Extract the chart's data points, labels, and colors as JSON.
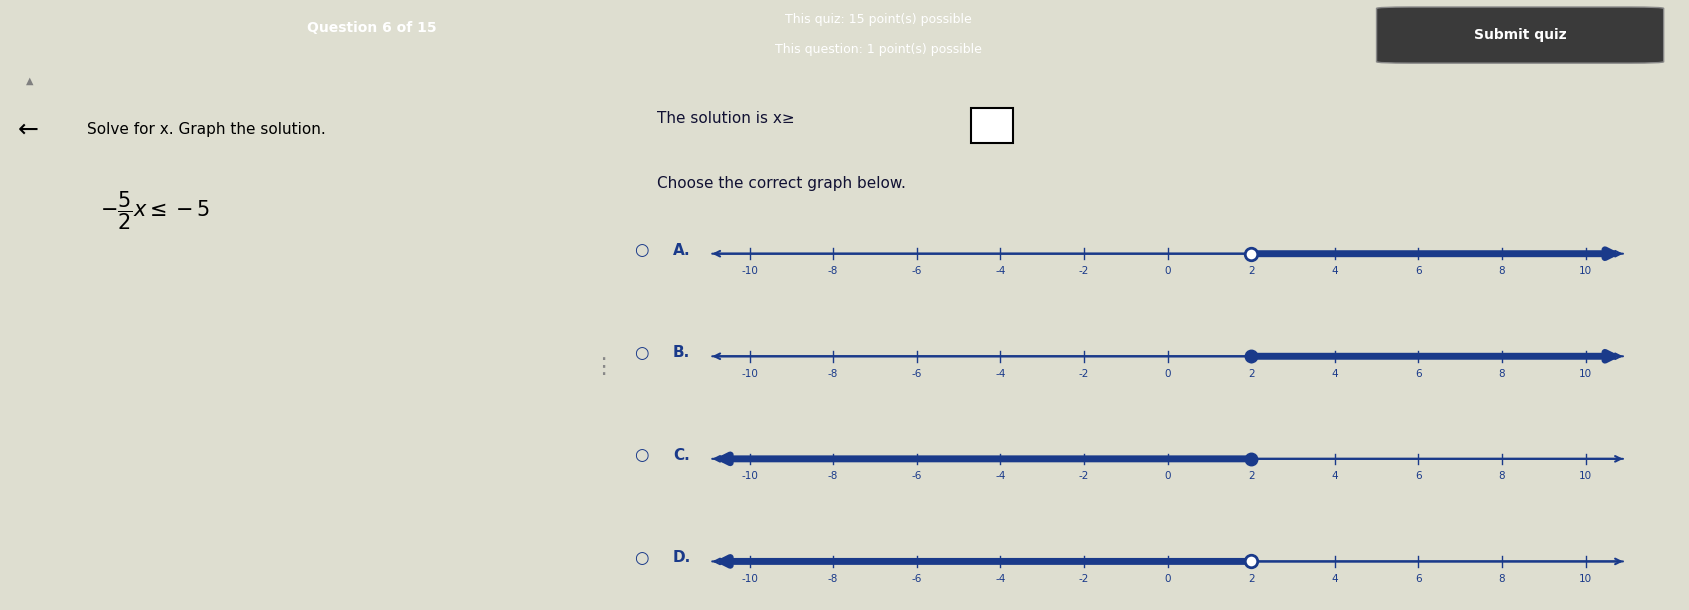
{
  "bg_color_top": "#7a3535",
  "bg_color_main": "#deded0",
  "bg_color_left": "#e0e0d0",
  "bg_color_right": "#e8e8da",
  "title_text": "Question 6 of 15",
  "quiz_points": "This quiz: 15 point(s) possible",
  "question_points": "This question: 1 point(s) possible",
  "submit_btn": "Submit quiz",
  "left_heading": "Solve for x. Graph the solution.",
  "solution_text": "The solution is x≥",
  "choose_text": "Choose the correct graph below.",
  "graphs": [
    {
      "label": "A.",
      "dot_at": 2,
      "dot_filled": false,
      "direction": "right"
    },
    {
      "label": "B.",
      "dot_at": 2,
      "dot_filled": true,
      "direction": "right"
    },
    {
      "label": "C.",
      "dot_at": 2,
      "dot_filled": true,
      "direction": "left"
    },
    {
      "label": "D.",
      "dot_at": 2,
      "dot_filled": false,
      "direction": "left"
    }
  ],
  "axis_min": -10,
  "axis_max": 10,
  "tick_step": 2,
  "line_color": "#1a3a8a",
  "text_color": "#111133",
  "top_text_color": "#ffffff",
  "radio_color": "#1a3a8a",
  "label_color": "#1a3a8a"
}
